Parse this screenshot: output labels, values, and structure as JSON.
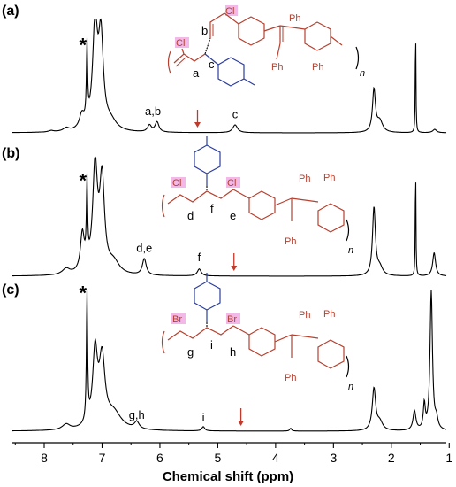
{
  "chart_data": {
    "type": "line",
    "xlabel": "Chemical shift (ppm)",
    "xlim": [
      8.55,
      1.05
    ],
    "x_reversed": true,
    "x_ticks": [
      "8",
      "7",
      "6",
      "5",
      "4",
      "3",
      "2",
      "1"
    ],
    "star_marker": "*",
    "panels": [
      {
        "label": "(a)",
        "peaks": [
          {
            "ppm": 7.88,
            "h": 0.012,
            "w": 0.05
          },
          {
            "ppm": 7.62,
            "h": 0.03,
            "w": 0.06
          },
          {
            "ppm": 7.35,
            "h": 0.12,
            "w": 0.05
          },
          {
            "ppm": 7.26,
            "h": 0.68,
            "w": 0.012
          },
          {
            "ppm": 7.12,
            "h": 0.93,
            "w": 0.05
          },
          {
            "ppm": 7.02,
            "h": 0.8,
            "w": 0.05
          },
          {
            "ppm": 6.85,
            "h": 0.08,
            "w": 0.12
          },
          {
            "ppm": 6.18,
            "h": 0.06,
            "w": 0.04
          },
          {
            "ppm": 6.05,
            "h": 0.09,
            "w": 0.04
          },
          {
            "ppm": 4.7,
            "h": 0.07,
            "w": 0.05
          },
          {
            "ppm": 2.3,
            "h": 0.38,
            "w": 0.03
          },
          {
            "ppm": 2.2,
            "h": 0.1,
            "w": 0.06
          },
          {
            "ppm": 1.58,
            "h": 1.0,
            "w": 0.006
          },
          {
            "ppm": 1.25,
            "h": 0.03,
            "w": 0.04
          }
        ],
        "annotations": [
          {
            "text": "a,b",
            "ppm": 6.12,
            "h": 0.16
          },
          {
            "text": "c",
            "ppm": 4.7,
            "h": 0.13
          }
        ],
        "star_ppm": 7.26,
        "arrow_ppm": 5.35,
        "structure": {
          "labels": [
            "a",
            "b",
            "c"
          ],
          "halogen": "Cl",
          "halogen2": "Cl",
          "ph": "Ph",
          "n": "n"
        }
      },
      {
        "label": "(b)",
        "peaks": [
          {
            "ppm": 7.62,
            "h": 0.05,
            "w": 0.08
          },
          {
            "ppm": 7.34,
            "h": 0.32,
            "w": 0.04
          },
          {
            "ppm": 7.26,
            "h": 0.68,
            "w": 0.012
          },
          {
            "ppm": 7.12,
            "h": 0.9,
            "w": 0.05
          },
          {
            "ppm": 7.0,
            "h": 0.78,
            "w": 0.05
          },
          {
            "ppm": 6.8,
            "h": 0.1,
            "w": 0.12
          },
          {
            "ppm": 6.27,
            "h": 0.14,
            "w": 0.04
          },
          {
            "ppm": 5.32,
            "h": 0.06,
            "w": 0.04
          },
          {
            "ppm": 2.3,
            "h": 0.58,
            "w": 0.03
          },
          {
            "ppm": 2.2,
            "h": 0.07,
            "w": 0.06
          },
          {
            "ppm": 1.58,
            "h": 1.0,
            "w": 0.006
          },
          {
            "ppm": 1.26,
            "h": 0.2,
            "w": 0.03
          }
        ],
        "annotations": [
          {
            "text": "d,e",
            "ppm": 6.27,
            "h": 0.21
          },
          {
            "text": "f",
            "ppm": 5.32,
            "h": 0.13
          }
        ],
        "star_ppm": 7.26,
        "arrow_ppm": 4.72,
        "structure": {
          "labels": [
            "d",
            "f",
            "e"
          ],
          "halogen": "Cl",
          "halogen2": "Cl",
          "ph": "Ph",
          "n": "n"
        }
      },
      {
        "label": "(c)",
        "peaks": [
          {
            "ppm": 7.62,
            "h": 0.04,
            "w": 0.08
          },
          {
            "ppm": 7.26,
            "h": 0.95,
            "w": 0.012
          },
          {
            "ppm": 7.12,
            "h": 0.53,
            "w": 0.05
          },
          {
            "ppm": 7.0,
            "h": 0.48,
            "w": 0.06
          },
          {
            "ppm": 6.8,
            "h": 0.12,
            "w": 0.16
          },
          {
            "ppm": 6.4,
            "h": 0.05,
            "w": 0.05
          },
          {
            "ppm": 5.25,
            "h": 0.03,
            "w": 0.03
          },
          {
            "ppm": 3.74,
            "h": 0.02,
            "w": 0.02
          },
          {
            "ppm": 2.3,
            "h": 0.3,
            "w": 0.035
          },
          {
            "ppm": 2.2,
            "h": 0.06,
            "w": 0.06
          },
          {
            "ppm": 1.6,
            "h": 0.14,
            "w": 0.03
          },
          {
            "ppm": 1.43,
            "h": 0.18,
            "w": 0.02
          },
          {
            "ppm": 1.31,
            "h": 1.0,
            "w": 0.025
          },
          {
            "ppm": 1.22,
            "h": 0.07,
            "w": 0.03
          }
        ],
        "annotations": [
          {
            "text": "g,h",
            "ppm": 6.4,
            "h": 0.09
          },
          {
            "text": "i",
            "ppm": 5.25,
            "h": 0.07
          }
        ],
        "star_ppm": 7.26,
        "arrow_ppm": 4.6,
        "structure": {
          "labels": [
            "g",
            "i",
            "h"
          ],
          "halogen": "Br",
          "halogen2": "Br",
          "ph": "Ph",
          "n": "n"
        }
      }
    ]
  },
  "colors": {
    "spectrum": "#000000",
    "arrow": "#c0392b",
    "red_structure": "#b5402f",
    "blue_structure": "#2c3e9c",
    "halogen_highlight": "#f2b8e8"
  }
}
